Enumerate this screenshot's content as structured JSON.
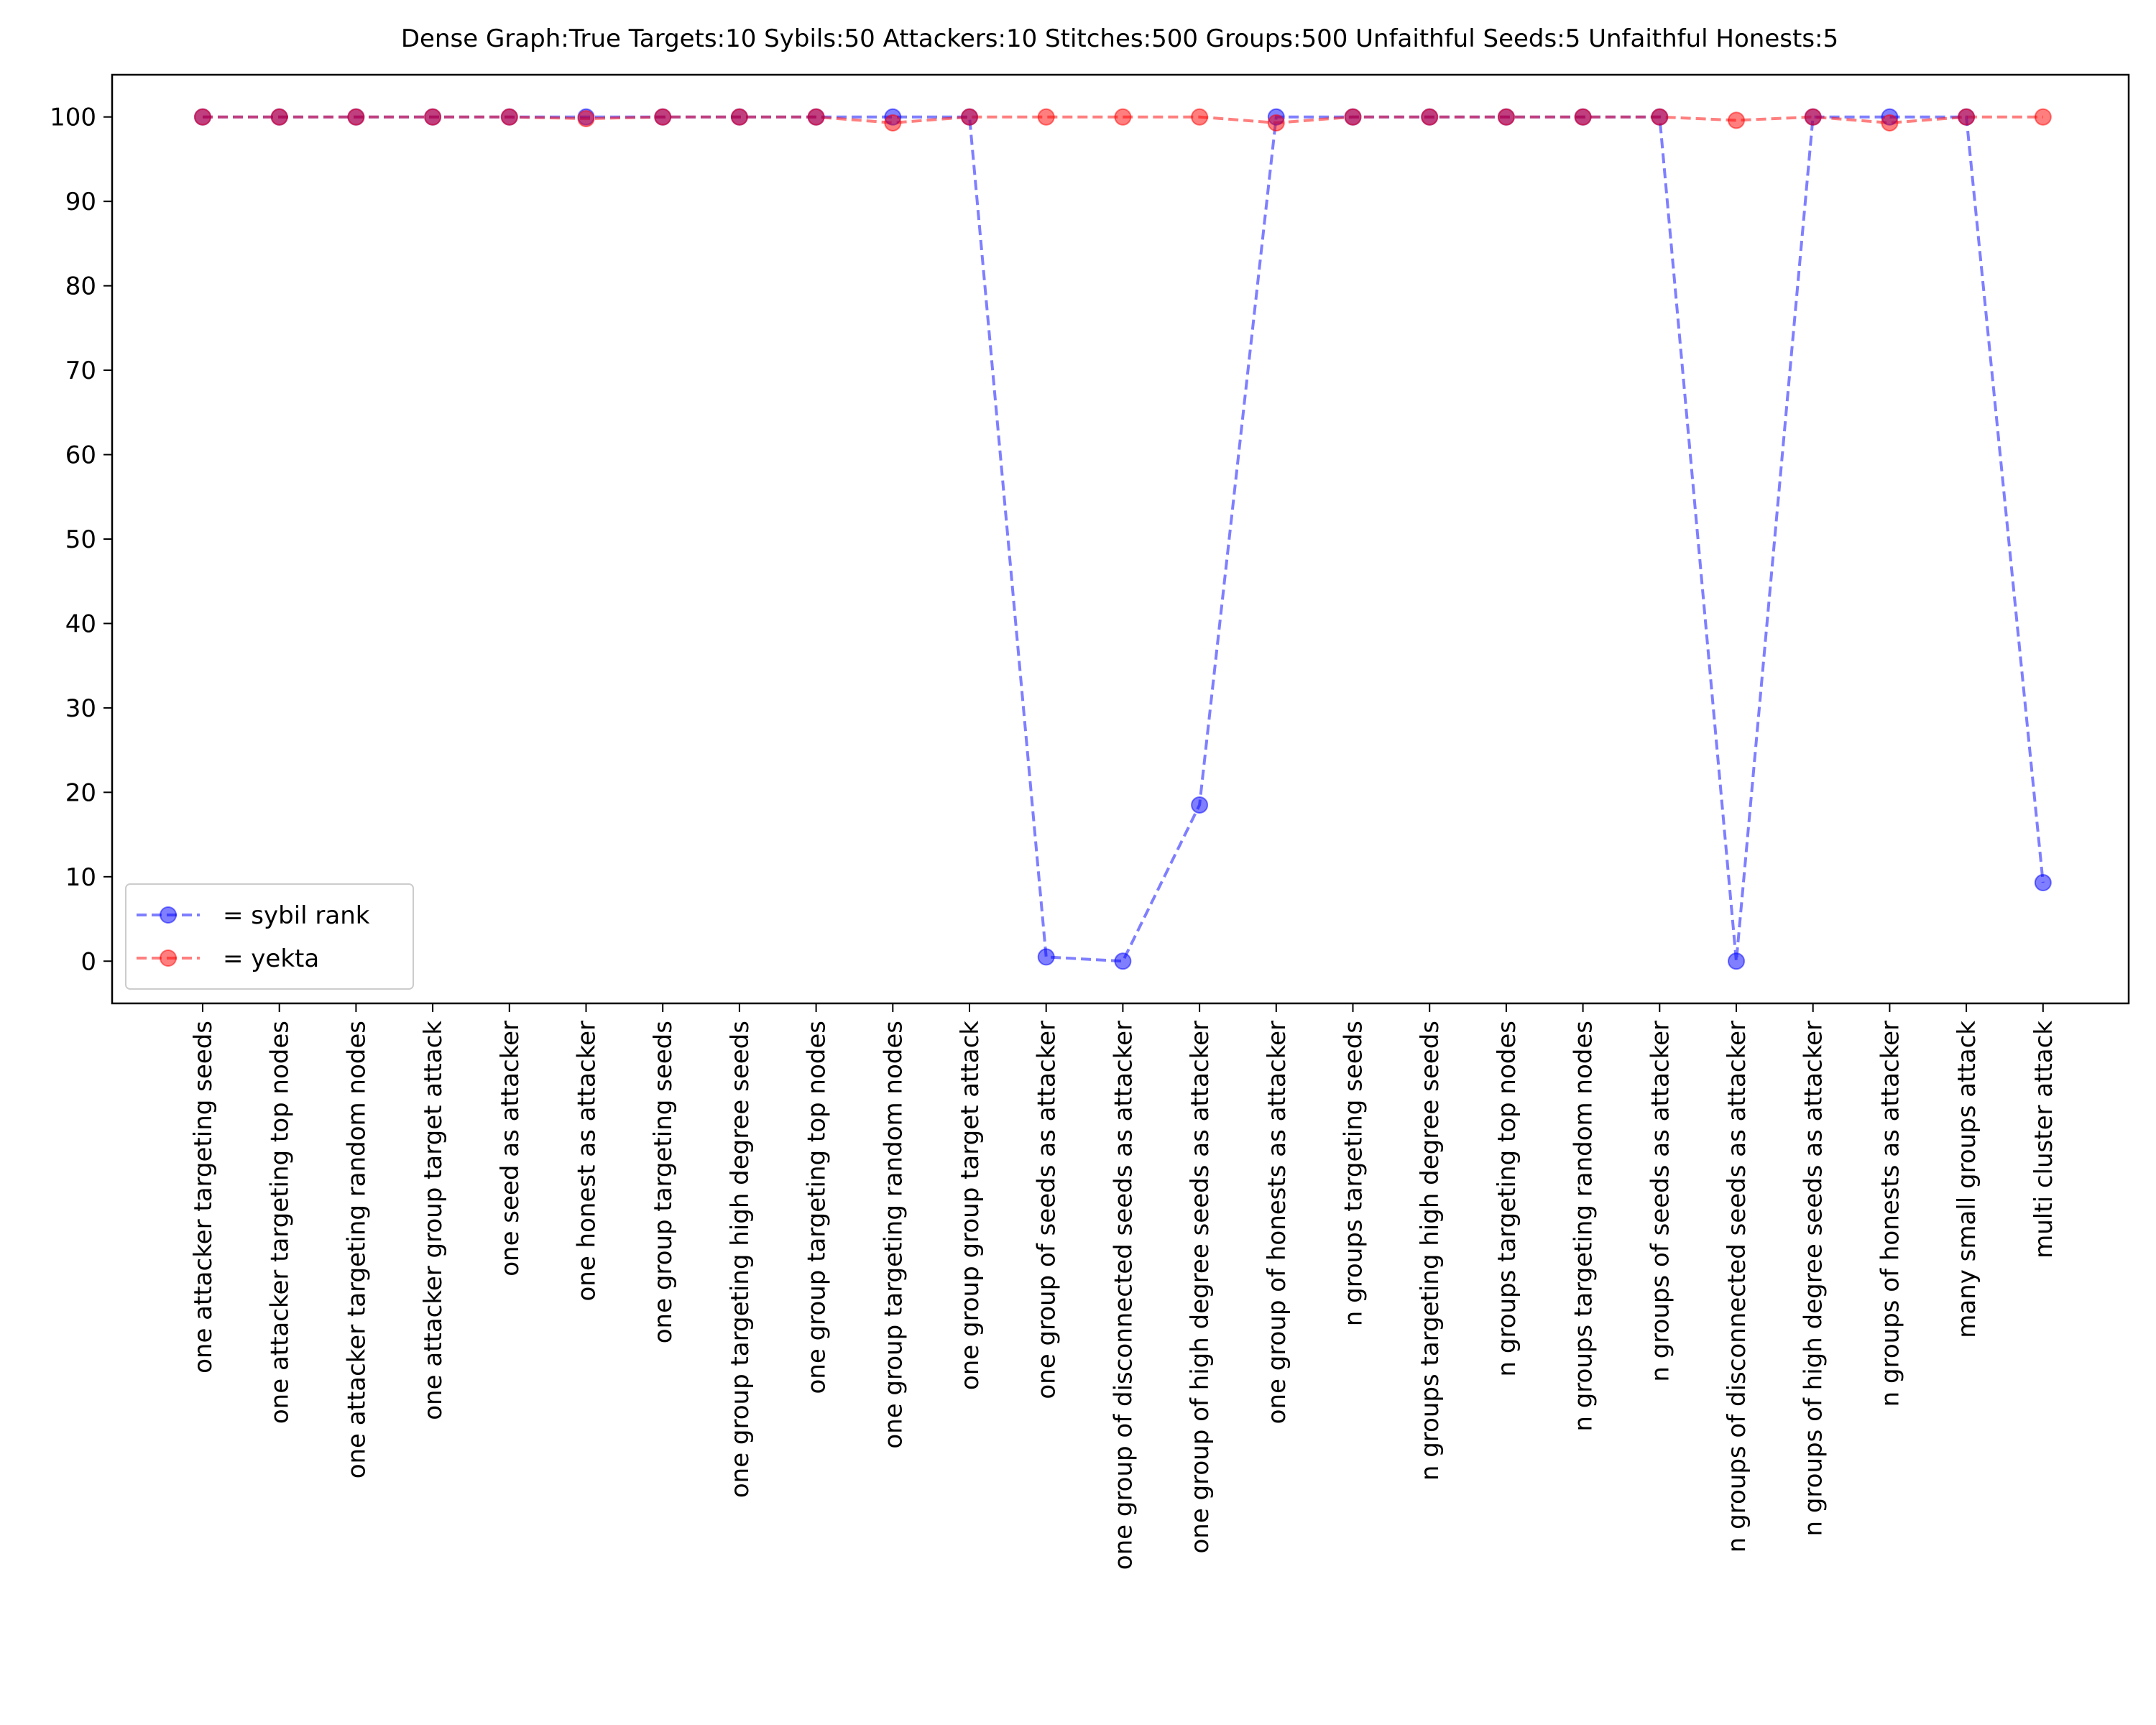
{
  "chart_data": {
    "type": "line",
    "title": "Dense Graph:True Targets:10 Sybils:50 Attackers:10 Stitches:500 Groups:500 Unfaithful Seeds:5 Unfaithful Honests:5",
    "xlabel": "",
    "ylabel": "",
    "ylim": [
      -5,
      105
    ],
    "yticks": [
      0,
      10,
      20,
      30,
      40,
      50,
      60,
      70,
      80,
      90,
      100
    ],
    "grid": false,
    "legend_position": "lower-left",
    "categories": [
      "one attacker targeting seeds",
      "one attacker targeting top nodes",
      "one attacker targeting random nodes",
      "one attacker group target attack",
      "one seed as attacker",
      "one honest as attacker",
      "one group targeting seeds",
      "one group targeting high degree seeds",
      "one group targeting top nodes",
      "one group targeting random nodes",
      "one group group target attack",
      "one group of seeds as attacker",
      "one group of disconnected seeds as attacker",
      "one group of high degree seeds as attacker",
      "one group of honests as attacker",
      "n groups targeting seeds",
      "n groups targeting high degree seeds",
      "n groups targeting top nodes",
      "n groups targeting random nodes",
      "n groups of seeds as attacker",
      "n groups of disconnected seeds as attacker",
      "n groups of high degree seeds as attacker",
      "n groups of honests as attacker",
      "many small groups attack",
      "multi cluster attack"
    ],
    "series": [
      {
        "name": "= sybil rank",
        "color": "#0000ff",
        "values": [
          100,
          100,
          100,
          100,
          100,
          100,
          100,
          100,
          100,
          100,
          100,
          0.5,
          0,
          18.5,
          100,
          100,
          100,
          100,
          100,
          100,
          0,
          100,
          100,
          100,
          9.3
        ]
      },
      {
        "name": "= yekta",
        "color": "#ff0000",
        "values": [
          100,
          100,
          100,
          100,
          100,
          99.8,
          100,
          100,
          100,
          99.3,
          100,
          100,
          100,
          100,
          99.3,
          100,
          100,
          100,
          100,
          100,
          99.6,
          100,
          99.3,
          100,
          100
        ]
      }
    ]
  }
}
